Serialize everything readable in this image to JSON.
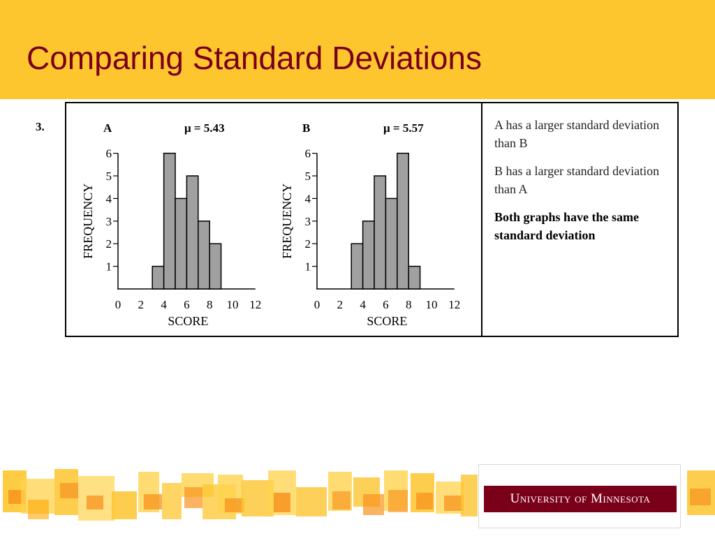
{
  "slide": {
    "title": "Comparing Standard Deviations",
    "question_number": "3."
  },
  "chart_data": [
    {
      "type": "bar",
      "panel_label": "A",
      "mean_label": "μ = 5.43",
      "xlabel": "SCORE",
      "ylabel": "FREQUENCY",
      "x_ticks": [
        "0",
        "2",
        "4",
        "6",
        "8",
        "10",
        "12"
      ],
      "y_ticks": [
        "1",
        "2",
        "3",
        "4",
        "5",
        "6"
      ],
      "xlim": [
        0,
        12
      ],
      "ylim": [
        0,
        6
      ],
      "bins": [
        [
          3,
          4
        ],
        [
          4,
          5
        ],
        [
          5,
          6
        ],
        [
          6,
          7
        ],
        [
          7,
          8
        ],
        [
          8,
          9
        ]
      ],
      "values": [
        1,
        6,
        4,
        5,
        3,
        2
      ],
      "bar_color": "#a0a0a0"
    },
    {
      "type": "bar",
      "panel_label": "B",
      "mean_label": "μ = 5.57",
      "xlabel": "SCORE",
      "ylabel": "FREQUENCY",
      "x_ticks": [
        "0",
        "2",
        "4",
        "6",
        "8",
        "10",
        "12"
      ],
      "y_ticks": [
        "1",
        "2",
        "3",
        "4",
        "5",
        "6"
      ],
      "xlim": [
        0,
        12
      ],
      "ylim": [
        0,
        6
      ],
      "bins": [
        [
          3,
          4
        ],
        [
          4,
          5
        ],
        [
          5,
          6
        ],
        [
          6,
          7
        ],
        [
          7,
          8
        ],
        [
          8,
          9
        ]
      ],
      "values": [
        2,
        3,
        5,
        4,
        6,
        1
      ],
      "bar_color": "#a0a0a0"
    }
  ],
  "answers": [
    {
      "text": "A has a larger standard deviation than B",
      "bold": false
    },
    {
      "text": "B has a larger standard deviation than A",
      "bold": false
    },
    {
      "text": "Both graphs have the same standard deviation",
      "bold": true
    }
  ],
  "footer": {
    "logo_text": "University of Minnesota"
  },
  "colors": {
    "header": "#fdc62f",
    "title": "#7a0019",
    "logo_bar": "#7a0019"
  }
}
